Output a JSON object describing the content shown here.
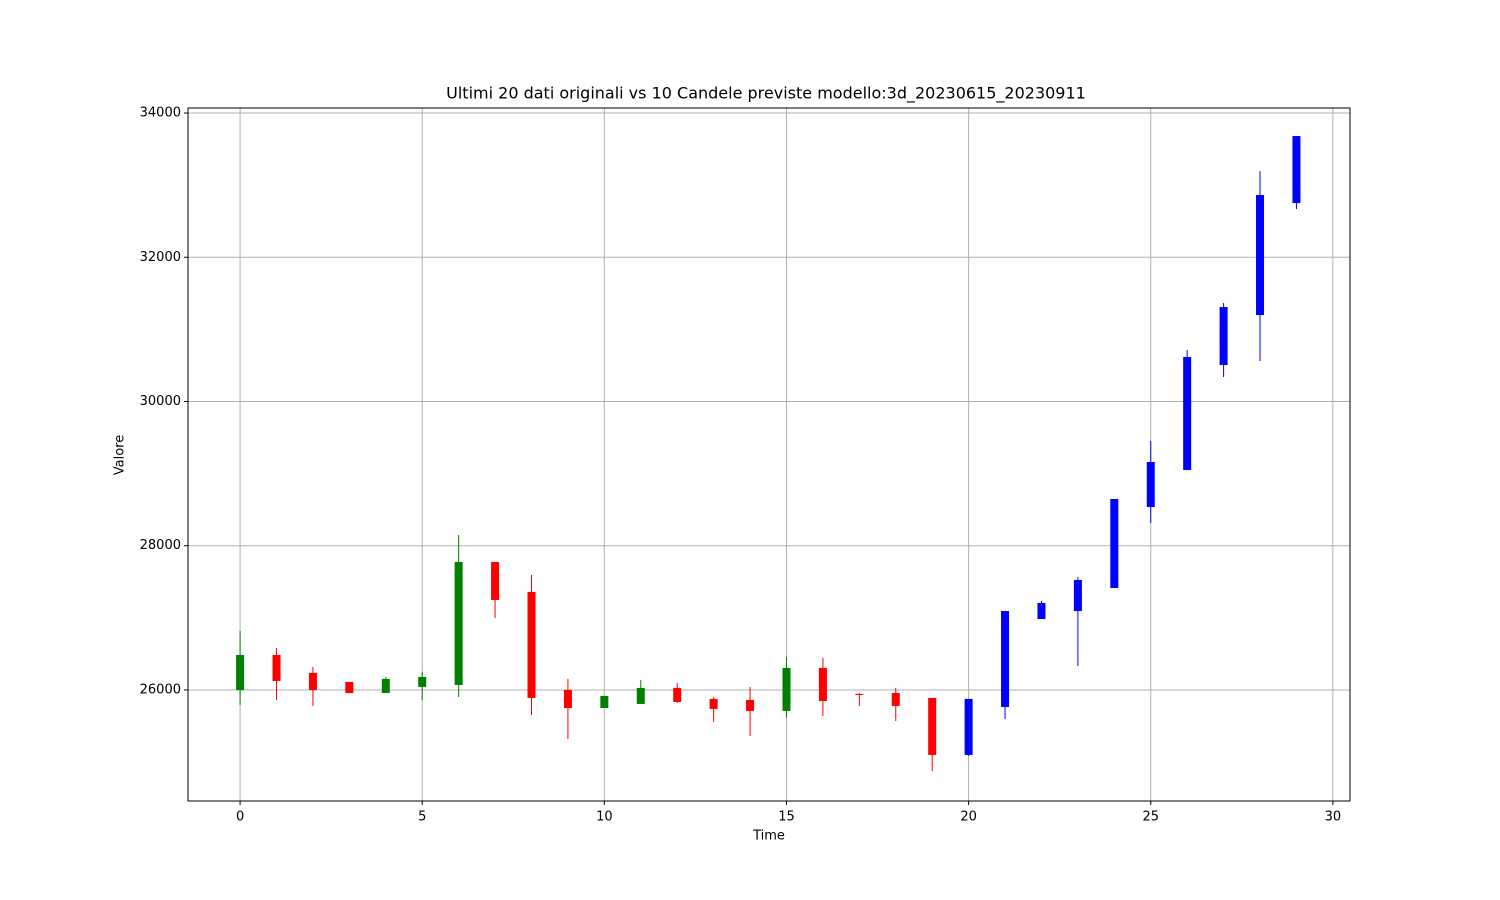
{
  "chart_data": {
    "type": "candlestick",
    "title": "Ultimi 20 dati originali vs 10 Candele previste modello:3d_20230615_20230911",
    "x_label": "Time",
    "y_label": "Valore",
    "xlim": [
      -1.43,
      30.47
    ],
    "ylim": [
      24460,
      34070
    ],
    "xticks": [
      0,
      5,
      10,
      15,
      20,
      25,
      30
    ],
    "yticks": [
      26000,
      28000,
      30000,
      32000,
      34000
    ],
    "grid": true,
    "series": [
      {
        "up_color": "green",
        "down_color": "red",
        "x": [
          0,
          1,
          2,
          3,
          4,
          5,
          6,
          7,
          8,
          9,
          10,
          11,
          12,
          13,
          14,
          15,
          16,
          17,
          18,
          19
        ],
        "open": [
          26000,
          26485,
          26236,
          26111,
          25958,
          26042,
          26069,
          27775,
          27359,
          26000,
          25750,
          25806,
          26028,
          25875,
          25861,
          25709,
          26305,
          25945,
          25958,
          25889
        ],
        "high": [
          26818,
          26582,
          26319,
          26111,
          26180,
          26250,
          28149,
          27775,
          27594,
          26153,
          25917,
          26139,
          26097,
          25903,
          26042,
          26458,
          26444,
          25958,
          26028,
          25889
        ],
        "low": [
          25792,
          25861,
          25778,
          25958,
          25958,
          25861,
          25903,
          26998,
          25653,
          25321,
          25750,
          25806,
          25820,
          25556,
          25362,
          25612,
          25640,
          25778,
          25570,
          24877
        ],
        "close": [
          26485,
          26125,
          26000,
          25958,
          26153,
          26180,
          27775,
          27248,
          25889,
          25750,
          25917,
          26028,
          25834,
          25737,
          25709,
          26305,
          25847,
          25930,
          25778,
          25099
        ]
      },
      {
        "color": "blue",
        "x": [
          20,
          21,
          22,
          23,
          24,
          25,
          26,
          27,
          28,
          29
        ],
        "open": [
          25099,
          25764,
          26984,
          27095,
          27414,
          28537,
          29050,
          30506,
          31199,
          32752
        ],
        "high": [
          25875,
          27095,
          27234,
          27567,
          28648,
          29452,
          30714,
          31365,
          33195,
          33681
        ],
        "low": [
          25085,
          25598,
          26984,
          26333,
          27414,
          28315,
          29050,
          30339,
          30561,
          32669
        ],
        "close": [
          25875,
          27095,
          27206,
          27525,
          28648,
          29161,
          30617,
          31310,
          32863,
          33681
        ]
      }
    ]
  }
}
